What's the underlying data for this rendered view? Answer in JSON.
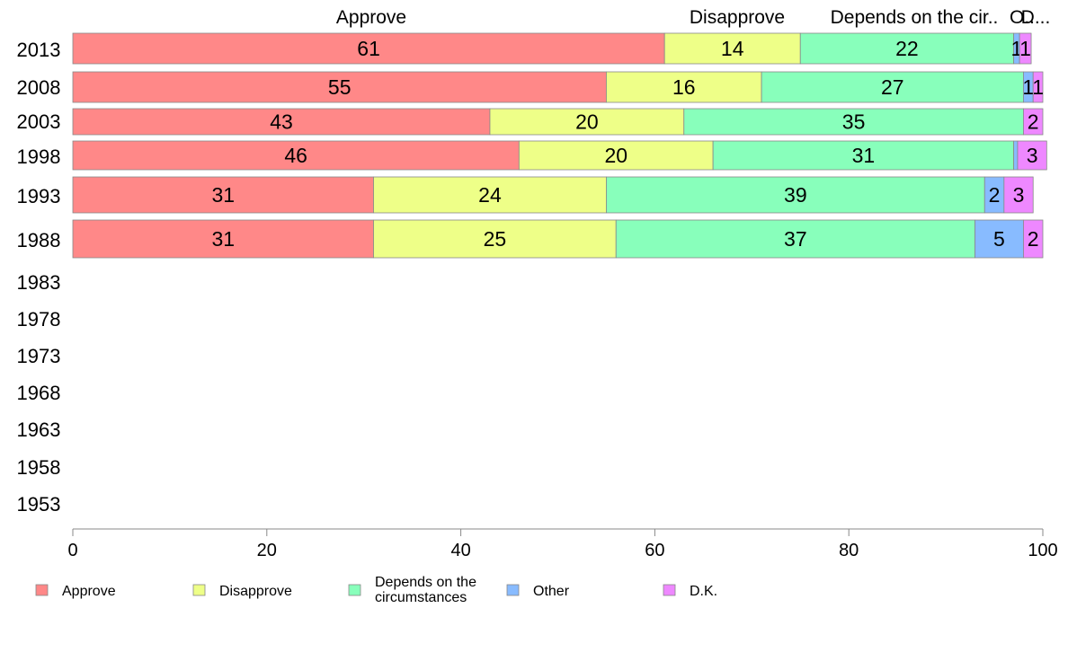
{
  "chart_data": {
    "type": "bar",
    "orientation": "horizontal",
    "stacked": true,
    "title": "",
    "xlabel": "",
    "ylabel": "",
    "xlim": [
      0,
      100
    ],
    "x_ticks": [
      "0",
      "20",
      "40",
      "60",
      "80",
      "100"
    ],
    "categories": [
      "2013",
      "2008",
      "2003",
      "1998",
      "1993",
      "1988",
      "1983",
      "1978",
      "1973",
      "1968",
      "1963",
      "1958",
      "1953"
    ],
    "column_headers": [
      "Approve",
      "Disapprove",
      "Depends on the cir..",
      "O..",
      "D..."
    ],
    "series": [
      {
        "name": "Approve",
        "color": "#ff8888",
        "values": [
          61,
          55,
          43,
          46,
          31,
          31,
          null,
          null,
          null,
          null,
          null,
          null,
          null
        ],
        "labels": [
          "61",
          "55",
          "43",
          "46",
          "31",
          "31",
          "",
          "",
          "",
          "",
          "",
          "",
          ""
        ]
      },
      {
        "name": "Disapprove",
        "color": "#eeff88",
        "values": [
          14,
          16,
          20,
          20,
          24,
          25,
          null,
          null,
          null,
          null,
          null,
          null,
          null
        ],
        "labels": [
          "14",
          "16",
          "20",
          "20",
          "24",
          "25",
          "",
          "",
          "",
          "",
          "",
          "",
          ""
        ]
      },
      {
        "name": "Depends on the circumstances",
        "color": "#88ffbb",
        "values": [
          22,
          27,
          35,
          31,
          39,
          37,
          null,
          null,
          null,
          null,
          null,
          null,
          null
        ],
        "labels": [
          "22",
          "27",
          "35",
          "31",
          "39",
          "37",
          "",
          "",
          "",
          "",
          "",
          "",
          ""
        ]
      },
      {
        "name": "Other",
        "color": "#88bbff",
        "values": [
          0.6,
          1,
          0,
          0.4,
          2,
          5,
          null,
          null,
          null,
          null,
          null,
          null,
          null
        ],
        "labels": [
          "1",
          "1",
          "",
          "",
          "2",
          "5",
          "",
          "",
          "",
          "",
          "",
          "",
          ""
        ]
      },
      {
        "name": "D.K.",
        "color": "#ee88ff",
        "values": [
          1.2,
          1,
          2,
          3,
          3,
          2,
          null,
          null,
          null,
          null,
          null,
          null,
          null
        ],
        "labels": [
          "1",
          "1",
          "2",
          "3",
          "3",
          "2",
          "",
          "",
          "",
          "",
          "",
          "",
          ""
        ]
      }
    ],
    "legend": {
      "placement": "bottom",
      "items": [
        {
          "lines": [
            "Approve"
          ],
          "color": "#ff8888"
        },
        {
          "lines": [
            "Disapprove"
          ],
          "color": "#eeff88"
        },
        {
          "lines": [
            "Depends on the",
            "circumstances"
          ],
          "color": "#88ffbb"
        },
        {
          "lines": [
            "Other"
          ],
          "color": "#88bbff"
        },
        {
          "lines": [
            "D.K."
          ],
          "color": "#ee88ff"
        }
      ]
    },
    "grid": false
  }
}
